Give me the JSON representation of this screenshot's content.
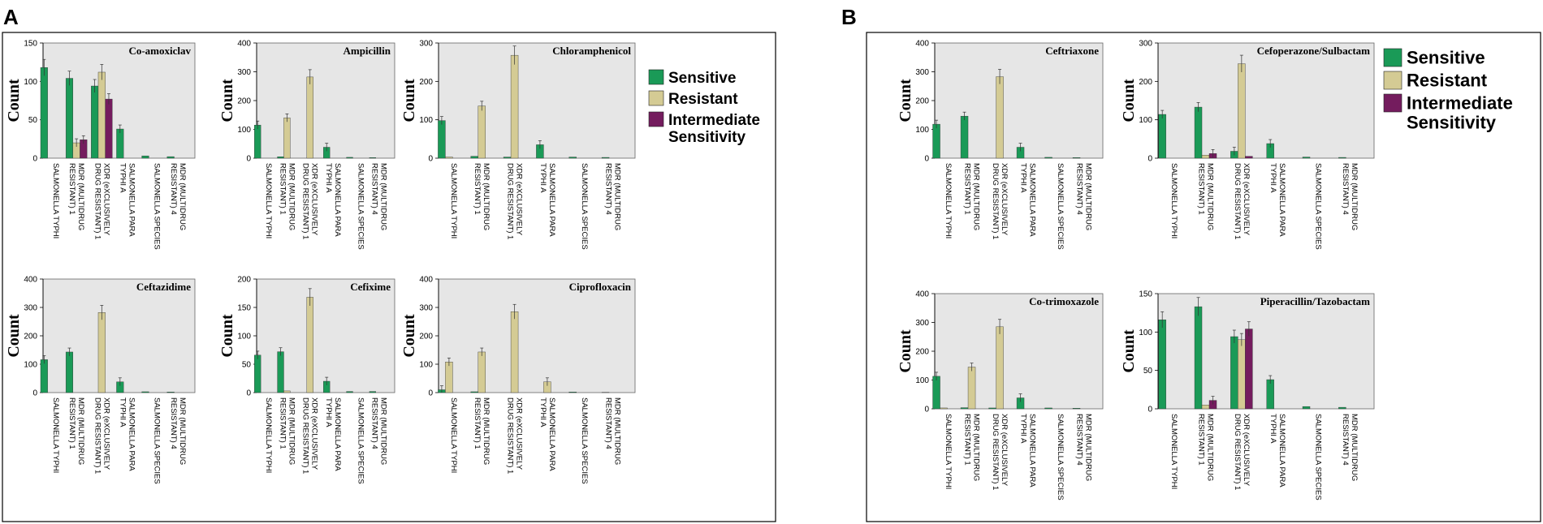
{
  "panel_labels": {
    "A": "A",
    "B": "B"
  },
  "colors": {
    "sensitive": "#1a9a57",
    "resistant": "#d4cb94",
    "intermediate": "#741c5e",
    "plot_bg": "#e6e6e6"
  },
  "axis_label": "Count",
  "categories": [
    "SALMONELLA TYPHI",
    "MDR (MULTIDRUG RESISTANT) 1",
    "XDR (eXCLUSIVELY DRUG RESISTANT) 1",
    "SALMONELLA PARA TYPHI A",
    "SALMONELLA SPECIES",
    "MDR (MULTIDRUG RESISTANT) 4"
  ],
  "category_lines": [
    [
      "SALMONELLA TYPHI"
    ],
    [
      "MDR (MULTIDRUG",
      "RESISTANT) 1"
    ],
    [
      "XDR (eXCLUSIVELY",
      "DRUG RESISTANT) 1"
    ],
    [
      "SALMONELLA PARA",
      "TYPHI A"
    ],
    [
      "SALMONELLA SPECIES"
    ],
    [
      "MDR (MULTIDRUG",
      "RESISTANT) 4"
    ]
  ],
  "legend_A": [
    {
      "key": "sensitive",
      "lines": [
        "Sensitive"
      ]
    },
    {
      "key": "resistant",
      "lines": [
        "Resistant"
      ]
    },
    {
      "key": "intermediate",
      "lines": [
        "Intermediate",
        "Sensitivity"
      ]
    }
  ],
  "legend_B": [
    {
      "key": "sensitive",
      "lines": [
        "Sensitive"
      ]
    },
    {
      "key": "resistant",
      "lines": [
        "Resistant"
      ]
    },
    {
      "key": "intermediate",
      "lines": [
        "Intermediate",
        "Sensitivity"
      ]
    }
  ],
  "chart_data": [
    {
      "panel": "A",
      "type": "bar",
      "title": "Co-amoxiclav",
      "ylabel": "Count",
      "ylim": [
        0,
        150
      ],
      "yticks": [
        0,
        50,
        100,
        150
      ],
      "categories": [
        "SALMONELLA TYPHI",
        "MDR (MULTIDRUG RESISTANT) 1",
        "XDR (eXCLUSIVELY DRUG RESISTANT) 1",
        "SALMONELLA PARA TYPHI A",
        "SALMONELLA SPECIES",
        "MDR (MULTIDRUG RESISTANT) 4"
      ],
      "series": [
        {
          "name": "Sensitive",
          "values": [
            118,
            104,
            94,
            38,
            3,
            2
          ]
        },
        {
          "name": "Resistant",
          "values": [
            0,
            20,
            112,
            0,
            0,
            0
          ]
        },
        {
          "name": "Intermediate Sensitivity",
          "values": [
            0,
            24,
            77,
            0,
            0,
            0
          ]
        }
      ]
    },
    {
      "panel": "A",
      "type": "bar",
      "title": "Ampicillin",
      "ylabel": "Count",
      "ylim": [
        0,
        400
      ],
      "yticks": [
        0,
        100,
        200,
        300,
        400
      ],
      "categories": [
        "SALMONELLA TYPHI",
        "MDR (MULTIDRUG RESISTANT) 1",
        "XDR (eXCLUSIVELY DRUG RESISTANT) 1",
        "SALMONELLA PARA TYPHI A",
        "SALMONELLA SPECIES",
        "MDR (MULTIDRUG RESISTANT) 4"
      ],
      "series": [
        {
          "name": "Sensitive",
          "values": [
            115,
            5,
            0,
            38,
            3,
            2
          ]
        },
        {
          "name": "Resistant",
          "values": [
            0,
            140,
            282,
            0,
            0,
            0
          ]
        },
        {
          "name": "Intermediate Sensitivity",
          "values": [
            0,
            0,
            0,
            0,
            0,
            0
          ]
        }
      ]
    },
    {
      "panel": "A",
      "type": "bar",
      "title": "Chloramphenicol",
      "ylabel": "Count",
      "ylim": [
        0,
        300
      ],
      "yticks": [
        0,
        100,
        200,
        300
      ],
      "categories": [
        "SALMONELLA TYPHI",
        "MDR (MULTIDRUG RESISTANT) 1",
        "XDR (eXCLUSIVELY DRUG RESISTANT) 1",
        "SALMONELLA PARA TYPHI A",
        "SALMONELLA SPECIES",
        "MDR (MULTIDRUG RESISTANT) 4"
      ],
      "series": [
        {
          "name": "Sensitive",
          "values": [
            98,
            5,
            3,
            35,
            3,
            2
          ]
        },
        {
          "name": "Resistant",
          "values": [
            3,
            136,
            268,
            0,
            0,
            0
          ]
        },
        {
          "name": "Intermediate Sensitivity",
          "values": [
            0,
            0,
            0,
            0,
            0,
            0
          ]
        }
      ]
    },
    {
      "panel": "A",
      "type": "bar",
      "title": "Ceftazidime",
      "ylabel": "Count",
      "ylim": [
        0,
        400
      ],
      "yticks": [
        0,
        100,
        200,
        300,
        400
      ],
      "categories": [
        "SALMONELLA TYPHI",
        "MDR (MULTIDRUG RESISTANT) 1",
        "XDR (eXCLUSIVELY DRUG RESISTANT) 1",
        "SALMONELLA PARA TYPHI A",
        "SALMONELLA SPECIES",
        "MDR (MULTIDRUG RESISTANT) 4"
      ],
      "series": [
        {
          "name": "Sensitive",
          "values": [
            116,
            143,
            0,
            38,
            3,
            2
          ]
        },
        {
          "name": "Resistant",
          "values": [
            0,
            0,
            282,
            0,
            0,
            0
          ]
        },
        {
          "name": "Intermediate Sensitivity",
          "values": [
            0,
            0,
            0,
            0,
            0,
            0
          ]
        }
      ]
    },
    {
      "panel": "A",
      "type": "bar",
      "title": "Cefixime",
      "ylabel": "Count",
      "ylim": [
        0,
        200
      ],
      "yticks": [
        0,
        50,
        100,
        150,
        200
      ],
      "categories": [
        "SALMONELLA TYPHI",
        "MDR (MULTIDRUG RESISTANT) 1",
        "XDR (eXCLUSIVELY DRUG RESISTANT) 1",
        "SALMONELLA PARA TYPHI A",
        "SALMONELLA SPECIES",
        "MDR (MULTIDRUG RESISTANT) 4"
      ],
      "series": [
        {
          "name": "Sensitive",
          "values": [
            66,
            72,
            0,
            20,
            2,
            2
          ]
        },
        {
          "name": "Resistant",
          "values": [
            0,
            3,
            168,
            0,
            0,
            0
          ]
        },
        {
          "name": "Intermediate Sensitivity",
          "values": [
            0,
            0,
            0,
            0,
            0,
            0
          ]
        }
      ]
    },
    {
      "panel": "A",
      "type": "bar",
      "title": "Ciprofloxacin",
      "ylabel": "Count",
      "ylim": [
        0,
        400
      ],
      "yticks": [
        0,
        100,
        200,
        300,
        400
      ],
      "categories": [
        "SALMONELLA TYPHI",
        "MDR (MULTIDRUG RESISTANT) 1",
        "XDR (eXCLUSIVELY DRUG RESISTANT) 1",
        "SALMONELLA PARA TYPHI A",
        "SALMONELLA SPECIES",
        "MDR (MULTIDRUG RESISTANT) 4"
      ],
      "series": [
        {
          "name": "Sensitive",
          "values": [
            10,
            3,
            0,
            0,
            2,
            1
          ]
        },
        {
          "name": "Resistant",
          "values": [
            108,
            143,
            285,
            38,
            0,
            0
          ]
        },
        {
          "name": "Intermediate Sensitivity",
          "values": [
            0,
            0,
            0,
            0,
            0,
            0
          ]
        }
      ]
    },
    {
      "panel": "B",
      "type": "bar",
      "title": "Ceftriaxone",
      "ylabel": "Count",
      "ylim": [
        0,
        400
      ],
      "yticks": [
        0,
        100,
        200,
        300,
        400
      ],
      "categories": [
        "SALMONELLA TYPHI",
        "MDR (MULTIDRUG RESISTANT) 1",
        "XDR (eXCLUSIVELY DRUG RESISTANT) 1",
        "SALMONELLA PARA TYPHI A",
        "SALMONELLA SPECIES",
        "MDR (MULTIDRUG RESISTANT) 4"
      ],
      "series": [
        {
          "name": "Sensitive",
          "values": [
            118,
            146,
            0,
            38,
            3,
            2
          ]
        },
        {
          "name": "Resistant",
          "values": [
            0,
            0,
            283,
            0,
            0,
            0
          ]
        },
        {
          "name": "Intermediate Sensitivity",
          "values": [
            0,
            0,
            0,
            0,
            0,
            0
          ]
        }
      ]
    },
    {
      "panel": "B",
      "type": "bar",
      "title": "Cefoperazone/Sulbactam",
      "ylabel": "Count",
      "ylim": [
        0,
        300
      ],
      "yticks": [
        0,
        100,
        200,
        300
      ],
      "categories": [
        "SALMONELLA TYPHI",
        "MDR (MULTIDRUG RESISTANT) 1",
        "XDR (eXCLUSIVELY DRUG RESISTANT) 1",
        "SALMONELLA PARA TYPHI A",
        "SALMONELLA SPECIES",
        "MDR (MULTIDRUG RESISTANT) 4"
      ],
      "series": [
        {
          "name": "Sensitive",
          "values": [
            114,
            133,
            18,
            38,
            3,
            2
          ]
        },
        {
          "name": "Resistant",
          "values": [
            0,
            8,
            246,
            0,
            0,
            0
          ]
        },
        {
          "name": "Intermediate Sensitivity",
          "values": [
            0,
            12,
            5,
            0,
            0,
            0
          ]
        }
      ]
    },
    {
      "panel": "B",
      "type": "bar",
      "title": "Co-trimoxazole",
      "ylabel": "Count",
      "ylim": [
        0,
        400
      ],
      "yticks": [
        0,
        100,
        200,
        300,
        400
      ],
      "categories": [
        "SALMONELLA TYPHI",
        "MDR (MULTIDRUG RESISTANT) 1",
        "XDR (eXCLUSIVELY DRUG RESISTANT) 1",
        "SALMONELLA PARA TYPHI A",
        "SALMONELLA SPECIES",
        "MDR (MULTIDRUG RESISTANT) 4"
      ],
      "series": [
        {
          "name": "Sensitive",
          "values": [
            113,
            4,
            3,
            38,
            3,
            2
          ]
        },
        {
          "name": "Resistant",
          "values": [
            3,
            145,
            285,
            0,
            0,
            0
          ]
        },
        {
          "name": "Intermediate Sensitivity",
          "values": [
            0,
            0,
            0,
            0,
            0,
            0
          ]
        }
      ]
    },
    {
      "panel": "B",
      "type": "bar",
      "title": "Piperacillin/Tazobactam",
      "ylabel": "Count",
      "ylim": [
        0,
        150
      ],
      "yticks": [
        0,
        50,
        100,
        150
      ],
      "categories": [
        "SALMONELLA TYPHI",
        "MDR (MULTIDRUG RESISTANT) 1",
        "XDR (eXCLUSIVELY DRUG RESISTANT) 1",
        "SALMONELLA PARA TYPHI A",
        "SALMONELLA SPECIES",
        "MDR (MULTIDRUG RESISTANT) 4"
      ],
      "series": [
        {
          "name": "Sensitive",
          "values": [
            116,
            133,
            94,
            38,
            3,
            2
          ]
        },
        {
          "name": "Resistant",
          "values": [
            0,
            5,
            90,
            0,
            0,
            0
          ]
        },
        {
          "name": "Intermediate Sensitivity",
          "values": [
            0,
            11,
            104,
            0,
            0,
            0
          ]
        }
      ]
    }
  ]
}
